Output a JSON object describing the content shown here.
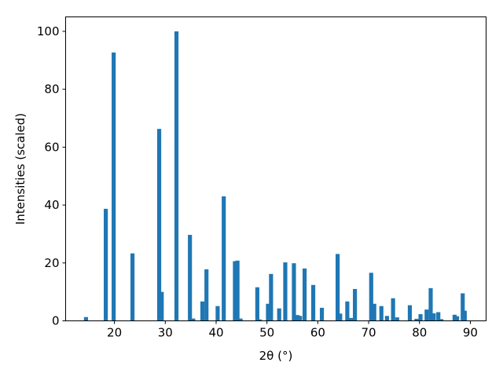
{
  "chart_data": {
    "type": "bar",
    "xlabel": "2θ (°)",
    "ylabel": "Intensities (scaled)",
    "color": "#1f77b4",
    "x": [
      14.4,
      18.3,
      19.85,
      23.55,
      28.8,
      29.3,
      32.2,
      34.85,
      35.5,
      37.3,
      38.1,
      40.3,
      41.5,
      43.7,
      44.2,
      44.8,
      48.1,
      48.6,
      50.2,
      50.8,
      52.4,
      53.6,
      55.3,
      56.0,
      56.5,
      57.4,
      59.1,
      60.8,
      63.9,
      64.4,
      65.8,
      66.5,
      67.3,
      70.5,
      71.1,
      72.5,
      73.6,
      74.8,
      75.6,
      78.1,
      79.4,
      80.2,
      81.4,
      82.2,
      82.8,
      83.7,
      84.3,
      86.9,
      87.4,
      88.5,
      88.9
    ],
    "values": [
      1.3,
      38.7,
      92.7,
      23.3,
      66.3,
      10,
      100,
      29.7,
      0.8,
      6.7,
      17.8,
      5.1,
      43,
      20.6,
      20.8,
      0.8,
      11.6,
      0.5,
      5.9,
      16.2,
      4.3,
      20.2,
      19.9,
      2.0,
      1.7,
      18.1,
      12.4,
      4.5,
      23.1,
      2.5,
      6.7,
      1.0,
      11.0,
      16.6,
      5.9,
      5.1,
      1.7,
      7.8,
      1.2,
      5.4,
      0.7,
      2.3,
      3.9,
      11.3,
      2.6,
      3.0,
      0.6,
      2.1,
      1.6,
      9.5,
      3.5
    ],
    "xlim": [
      10.4,
      93.1
    ],
    "ylim": [
      0,
      105
    ],
    "xticks": [
      20,
      30,
      40,
      50,
      60,
      70,
      80,
      90
    ],
    "yticks": [
      0,
      20,
      40,
      60,
      80,
      100
    ]
  }
}
